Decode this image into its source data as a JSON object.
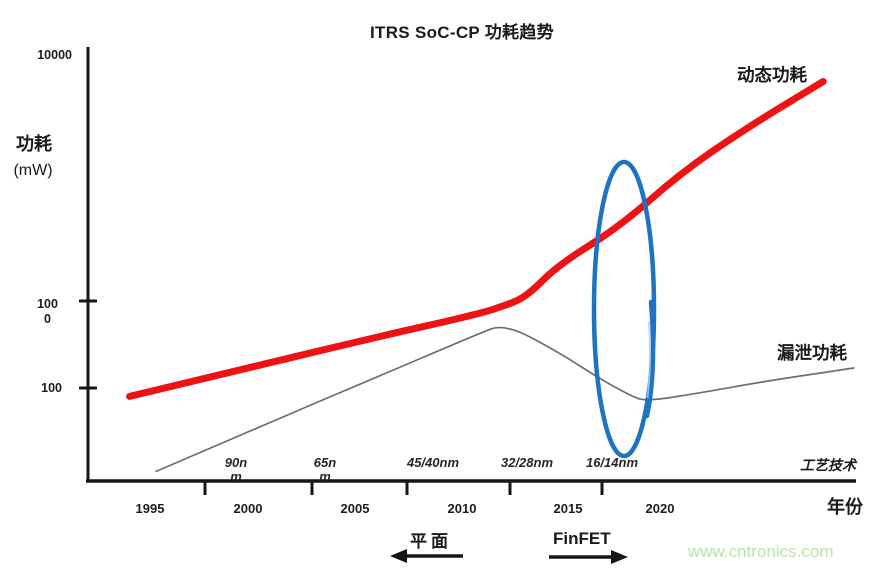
{
  "title": "ITRS SoC-CP 功耗趋势",
  "watermark": "www.cntronics.com",
  "y_axis": {
    "title": "功耗",
    "unit": "(mW)",
    "tick_labels": [
      "10000",
      "1000",
      "100"
    ]
  },
  "x_axis": {
    "title": "年份",
    "tick_labels": [
      "1995",
      "2000",
      "2005",
      "2010",
      "2015",
      "2020"
    ],
    "process_axis_label": "工艺技术",
    "process_nodes": [
      "90nm",
      "65nm",
      "45/40nm",
      "32/28nm",
      "16/14nm"
    ]
  },
  "series_labels": {
    "dynamic": "动态功耗",
    "leakage": "漏泄功耗"
  },
  "era_annotations": {
    "planar": {
      "label": "平面",
      "arrow_direction": "left"
    },
    "finfet": {
      "label": "FinFET",
      "arrow_direction": "right"
    }
  },
  "colors": {
    "dynamic_line": "#ee1212",
    "leakage_line": "#6f6f6f",
    "highlight_ellipse": "#1e73c2",
    "axis": "#161616",
    "watermark": "#b9e4ad"
  },
  "chart_data": {
    "type": "line",
    "title": "ITRS SoC-CP 功耗趋势",
    "xlabel": "年份",
    "ylabel": "功耗 (mW)",
    "y_scale": "log",
    "ylim": [
      10,
      10000
    ],
    "x_ticks": [
      1995,
      2000,
      2005,
      2010,
      2015,
      2020
    ],
    "y_ticks": [
      10000,
      1000,
      100
    ],
    "secondary_x_axis": {
      "label": "工艺技术",
      "nodes": [
        "90nm",
        "65nm",
        "45/40nm",
        "32/28nm",
        "16/14nm"
      ]
    },
    "grid": false,
    "legend_position": "inline-labels",
    "series": [
      {
        "name": "动态功耗",
        "color": "#ee1212",
        "x": [
          1994,
          2000,
          2006,
          2011,
          2012.5,
          2013.5,
          2015,
          2018,
          2021,
          2024,
          2028
        ],
        "y": [
          80,
          175,
          380,
          700,
          900,
          1050,
          1400,
          2000,
          3300,
          4900,
          7800
        ]
      },
      {
        "name": "漏泄功耗",
        "color": "#6f6f6f",
        "x": [
          1995.3,
          2000,
          2006,
          2011,
          2012.4,
          2015,
          2017,
          2018.5,
          2019.3,
          2022,
          2025,
          2029.5
        ],
        "y": [
          11,
          33,
          130,
          410,
          550,
          260,
          130,
          83,
          70,
          88,
          118,
          170
        ]
      }
    ],
    "annotations": [
      {
        "type": "ellipse_highlight",
        "color": "#1e73c2",
        "x_center": 2018.2,
        "near_node": "16/14nm"
      },
      {
        "type": "era_arrow",
        "label": "平面",
        "direction": "left",
        "x_range": [
          1994,
          2012
        ]
      },
      {
        "type": "era_arrow",
        "label": "FinFET",
        "direction": "right",
        "x_range": [
          2014,
          2020
        ]
      }
    ]
  }
}
